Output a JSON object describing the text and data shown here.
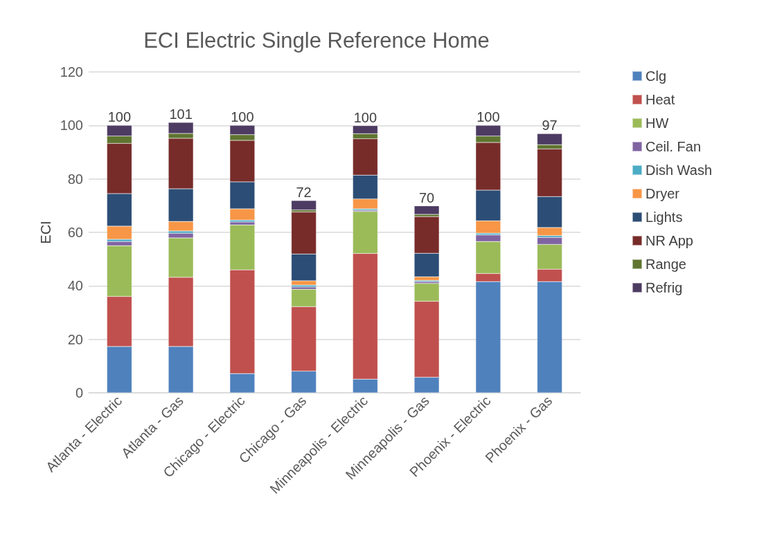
{
  "chart_data": {
    "type": "bar",
    "title": "ECI Electric Single Reference Home",
    "ylabel": "ECI",
    "stacked": true,
    "categories": [
      "Atlanta - Electric",
      "Atlanta - Gas",
      "Chicago - Electric",
      "Chicago - Gas",
      "Minneapolis - Electric",
      "Minneapolis - Gas",
      "Phoenix - Electric",
      "Phoenix - Gas"
    ],
    "series": [
      {
        "name": "Clg",
        "color": "#4f81bd",
        "values": [
          17.3,
          17.3,
          7.2,
          8.1,
          5.1,
          5.8,
          41.6,
          41.6
        ]
      },
      {
        "name": "Heat",
        "color": "#c0504d",
        "values": [
          18.7,
          25.9,
          38.8,
          24.1,
          47,
          28.4,
          3,
          4.6
        ]
      },
      {
        "name": "HW",
        "color": "#9bbb59",
        "values": [
          19,
          14.7,
          16.8,
          6.5,
          15.7,
          6.7,
          12,
          9.3
        ]
      },
      {
        "name": "Ceil. Fan",
        "color": "#8064a2",
        "values": [
          1.6,
          1.8,
          1.1,
          0.9,
          0.5,
          0.7,
          2.4,
          2.6
        ]
      },
      {
        "name": "Dish Wash",
        "color": "#4bacc6",
        "values": [
          0.8,
          0.8,
          0.7,
          0.7,
          0.5,
          0.4,
          0.7,
          0.7
        ]
      },
      {
        "name": "Dryer",
        "color": "#f79646",
        "values": [
          4.9,
          3.6,
          4.2,
          1.6,
          3.7,
          1.4,
          4.6,
          3
        ]
      },
      {
        "name": "Lights",
        "color": "#2c4d75",
        "values": [
          12.2,
          12.2,
          10.1,
          10,
          8.9,
          8.8,
          11.5,
          11.6
        ]
      },
      {
        "name": "NR App",
        "color": "#772c2a",
        "values": [
          18.8,
          18.9,
          15.5,
          15.7,
          13.6,
          13.7,
          17.8,
          17.8
        ]
      },
      {
        "name": "Range",
        "color": "#5f7530",
        "values": [
          2.7,
          1.8,
          2.1,
          0.8,
          1.9,
          0.8,
          2.4,
          1.6
        ]
      },
      {
        "name": "Refrig",
        "color": "#4d3b62",
        "values": [
          4,
          4.1,
          3.5,
          3.5,
          3,
          3.2,
          4,
          4.1
        ]
      }
    ],
    "totals": [
      "100",
      "101",
      "100",
      "72",
      "100",
      "70",
      "100",
      "97"
    ],
    "ylim": [
      0,
      120
    ],
    "yticks": [
      0,
      20,
      40,
      60,
      80,
      100,
      120
    ],
    "grid": "y",
    "legend": "right"
  }
}
